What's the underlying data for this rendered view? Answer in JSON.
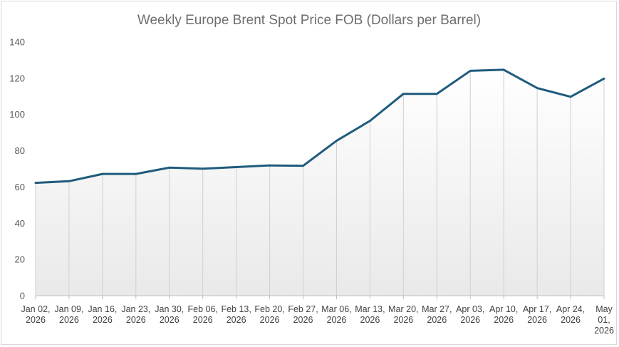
{
  "chart_data": {
    "type": "area",
    "title": "Weekly Europe Brent Spot Price FOB  (Dollars per Barrel)",
    "xlabel": "",
    "ylabel": "",
    "ylim": [
      0,
      140
    ],
    "yticks": [
      0,
      20,
      40,
      60,
      80,
      100,
      120,
      140
    ],
    "categories": [
      [
        "Jan 02,",
        "2026"
      ],
      [
        "Jan 09,",
        "2026"
      ],
      [
        "Jan 16,",
        "2026"
      ],
      [
        "Jan 23,",
        "2026"
      ],
      [
        "Jan 30,",
        "2026"
      ],
      [
        "Feb 06,",
        "2026"
      ],
      [
        "Feb 13,",
        "2026"
      ],
      [
        "Feb 20,",
        "2026"
      ],
      [
        "Feb 27,",
        "2026"
      ],
      [
        "Mar 06,",
        "2026"
      ],
      [
        "Mar 13,",
        "2026"
      ],
      [
        "Mar 20,",
        "2026"
      ],
      [
        "Mar 27,",
        "2026"
      ],
      [
        "Apr 03,",
        "2026"
      ],
      [
        "Apr 10,",
        "2026"
      ],
      [
        "Apr 17,",
        "2026"
      ],
      [
        "Apr 24,",
        "2026"
      ],
      [
        "May",
        "01,",
        "2026"
      ]
    ],
    "values": [
      62.3,
      63.2,
      67.2,
      67.2,
      70.7,
      70.1,
      71.0,
      71.9,
      71.7,
      85.5,
      96.5,
      111.4,
      111.4,
      124.1,
      124.7,
      114.6,
      109.8,
      119.8
    ],
    "grid": false,
    "drop_lines": true,
    "legend": "none",
    "colors": {
      "line": "#1f5b7c",
      "drop_line": "#d0d0d0",
      "fill_top": "#ffffff",
      "fill_bottom": "#e9e9e9",
      "axis": "#bfbfbf"
    }
  }
}
